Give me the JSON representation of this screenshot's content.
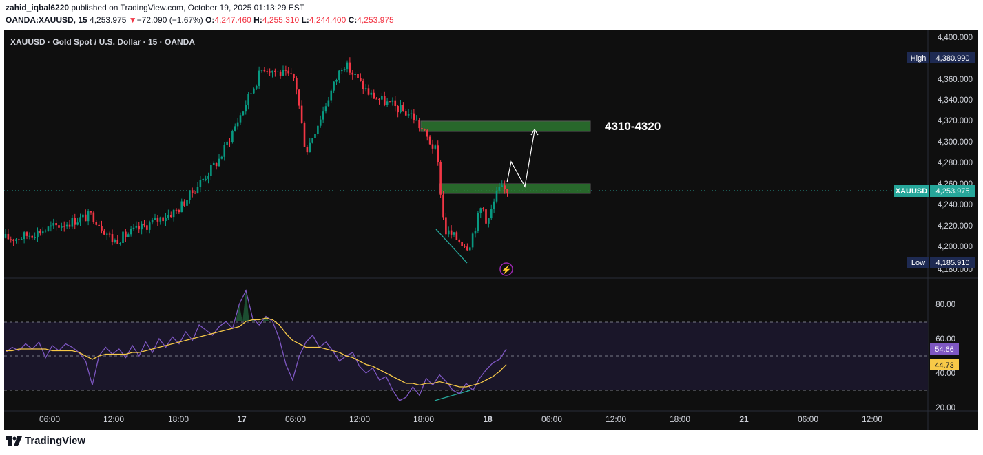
{
  "header": {
    "author": "zahid_iqbal6220",
    "published_text": "published on TradingView.com, October 19, 2025 01:13:29 EST",
    "symbol_line": "OANDA:XAUUSD, 15",
    "last": "4,253.975",
    "change": "−72.090 (−1.67%)",
    "o_label": "O:",
    "o_val": "4,247.460",
    "h_label": "H:",
    "h_val": "4,255.310",
    "l_label": "L:",
    "l_val": "4,244.400",
    "c_label": "C:",
    "c_val": "4,253.975"
  },
  "chart_title": "XAUUSD · Gold Spot / U.S. Dollar · 15 · OANDA",
  "annotation": "4310-4320",
  "price_axis": {
    "ticks": [
      "4,400.000",
      "4,360.000",
      "4,340.000",
      "4,320.000",
      "4,300.000",
      "4,280.000",
      "4,240.000",
      "4,220.000",
      "4,200.000"
    ],
    "high_label": "High",
    "high_value": "4,380.990",
    "low_label": "Low",
    "low_value": "4,185.910",
    "current_label": "XAUUSD",
    "current_value": "4,253.975",
    "partial_260": "4,260.000",
    "partial_180": "4,180.000"
  },
  "rsi_axis": {
    "ticks": [
      "80.00",
      "60.00",
      "40.00",
      "20.00"
    ],
    "rsi_value": "54.66",
    "ma_value": "44.73"
  },
  "time_axis": [
    "06:00",
    "12:00",
    "18:00",
    "17",
    "06:00",
    "12:00",
    "18:00",
    "18",
    "06:00",
    "12:00",
    "18:00",
    "21",
    "06:00",
    "12:00"
  ],
  "colors": {
    "background": "#0f0f0f",
    "up": "#089981",
    "down": "#f23645",
    "zone": "#2e7d32",
    "rsi": "#7e57c2",
    "rsi_ma": "#f7c948",
    "current_tag": "#26a69a",
    "range_tag": "#1e2a52"
  },
  "brand": "TradingView",
  "chart_data": [
    {
      "type": "candlestick",
      "title": "XAUUSD · Gold Spot / U.S. Dollar · 15 · OANDA",
      "ylim": [
        4180,
        4400
      ],
      "y_ticks": [
        4200,
        4220,
        4240,
        4260,
        4280,
        4300,
        4320,
        4340,
        4360,
        4400
      ],
      "high": 4380.99,
      "low": 4185.91,
      "last": 4253.975,
      "path_key_points": [
        {
          "t": "16 03:00",
          "price": 4208
        },
        {
          "t": "16 10:00",
          "price": 4230
        },
        {
          "t": "16 12:00",
          "price": 4205
        },
        {
          "t": "16 18:00",
          "price": 4235
        },
        {
          "t": "16 22:00",
          "price": 4285
        },
        {
          "t": "17 02:00",
          "price": 4372
        },
        {
          "t": "17 05:00",
          "price": 4360
        },
        {
          "t": "17 06:00",
          "price": 4290
        },
        {
          "t": "17 09:30",
          "price": 4376
        },
        {
          "t": "17 12:00",
          "price": 4345
        },
        {
          "t": "17 16:00",
          "price": 4325
        },
        {
          "t": "17 18:15",
          "price": 4290
        },
        {
          "t": "17 19:00",
          "price": 4215
        },
        {
          "t": "17 21:15",
          "price": 4200
        },
        {
          "t": "17 22:30",
          "price": 4240
        },
        {
          "t": "17 23:00",
          "price": 4222
        },
        {
          "t": "18 00:00",
          "price": 4254
        }
      ],
      "zones": [
        {
          "from": 4310,
          "to": 4320,
          "label": "4310-4320"
        },
        {
          "from": 4252,
          "to": 4259
        }
      ],
      "projection_arrow": [
        {
          "t": "18 00:00",
          "price": 4262
        },
        {
          "t": "18 01:00",
          "price": 4282
        },
        {
          "t": "18 02:00",
          "price": 4260
        },
        {
          "t": "18 04:00",
          "price": 4313
        }
      ]
    },
    {
      "type": "line",
      "title": "RSI",
      "ylim": [
        20,
        80
      ],
      "y_ticks": [
        20,
        40,
        60,
        80
      ],
      "bands": [
        70,
        50,
        30
      ],
      "series": [
        {
          "values": [
            52,
            55,
            53,
            57,
            54,
            58,
            49,
            56,
            53,
            57,
            55,
            52,
            47,
            33,
            50,
            55,
            51,
            54,
            49,
            56,
            50,
            58,
            52,
            60,
            55,
            61,
            57,
            64,
            59,
            68,
            65,
            62,
            67,
            70,
            66,
            80,
            88,
            72,
            68,
            73,
            70,
            60,
            45,
            36,
            50,
            58,
            62,
            55,
            58,
            53,
            47,
            50,
            52,
            44,
            40,
            43,
            36,
            38,
            30,
            24,
            26,
            32,
            27,
            37,
            33,
            39,
            35,
            30,
            28,
            34,
            30,
            37,
            42,
            46,
            48,
            54
          ]
        },
        {
          "values": [
            53,
            53,
            54,
            54,
            54,
            54,
            54,
            53,
            53,
            53,
            53,
            52,
            50,
            48,
            50,
            51,
            51,
            51,
            51,
            52,
            52,
            53,
            54,
            55,
            56,
            57,
            58,
            59,
            60,
            61,
            62,
            63,
            64,
            65,
            66,
            67,
            70,
            71,
            71,
            72,
            71,
            68,
            63,
            59,
            57,
            55,
            55,
            55,
            54,
            53,
            52,
            50,
            49,
            47,
            45,
            44,
            42,
            40,
            38,
            36,
            34,
            34,
            33,
            34,
            34,
            35,
            34,
            33,
            32,
            32,
            33,
            34,
            36,
            38,
            41,
            45
          ]
        }
      ],
      "last_values": [
        54.66,
        44.73
      ]
    }
  ]
}
